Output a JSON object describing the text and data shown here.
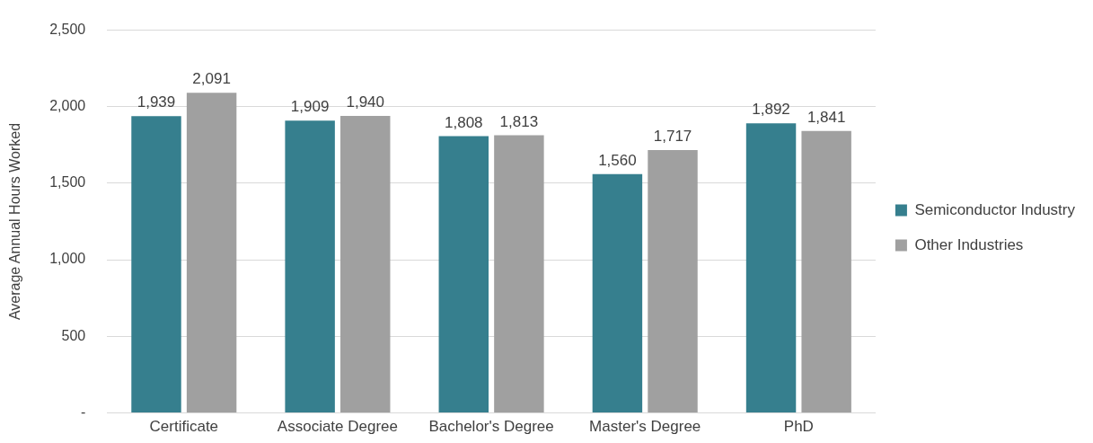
{
  "chart_data": {
    "type": "bar",
    "ylabel": "Average Annual Hours Worked",
    "categories": [
      "Certificate",
      "Associate Degree",
      "Bachelor's Degree",
      "Master's Degree",
      "PhD"
    ],
    "series": [
      {
        "name": "Semiconductor Industry",
        "color": "#367f8e",
        "values": [
          1939,
          1909,
          1808,
          1560,
          1892
        ],
        "value_labels": [
          "1,939",
          "1,909",
          "1,808",
          "1,560",
          "1,892"
        ]
      },
      {
        "name": "Other Industries",
        "color": "#a0a0a0",
        "values": [
          2091,
          1940,
          1813,
          1717,
          1841
        ],
        "value_labels": [
          "2,091",
          "1,940",
          "1,813",
          "1,717",
          "1,841"
        ]
      }
    ],
    "ylim": [
      0,
      2500
    ],
    "yticks": [
      {
        "value": 0,
        "label": "-"
      },
      {
        "value": 500,
        "label": "500"
      },
      {
        "value": 1000,
        "label": "1,000"
      },
      {
        "value": 1500,
        "label": "1,500"
      },
      {
        "value": 2000,
        "label": "2,000"
      },
      {
        "value": 2500,
        "label": "2,500"
      }
    ],
    "grid": "y",
    "legend": "right"
  }
}
